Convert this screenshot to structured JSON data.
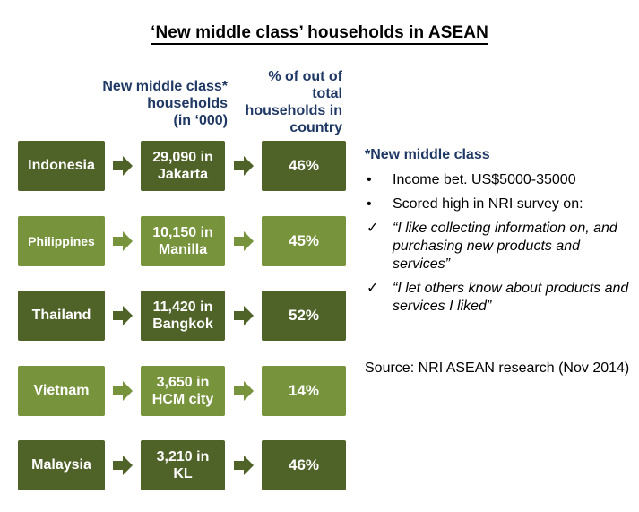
{
  "title": "‘New middle class’ households  in ASEAN",
  "columns": {
    "households": "New middle class*\nhouseholds\n(in ‘000)",
    "percent": "% of out of\ntotal\nhouseholds in\ncountry"
  },
  "rows": [
    {
      "country": "Indonesia",
      "households": "29,090 in\nJakarta",
      "percent": "46%"
    },
    {
      "country": "Philippines",
      "households": "10,150 in\nManilla",
      "percent": "45%"
    },
    {
      "country": "Thailand",
      "households": "11,420 in\nBangkok",
      "percent": "52%"
    },
    {
      "country": "Vietnam",
      "households": "3,650 in\nHCM city",
      "percent": "14%"
    },
    {
      "country": "Malaysia",
      "households": "3,210 in\nKL",
      "percent": "46%"
    }
  ],
  "notes": {
    "heading": "*New middle class",
    "bullet_mark": "•",
    "check_mark": "✓",
    "items": [
      "Income bet. US$5000-35000",
      "Scored high in NRI survey on:",
      "“I like collecting information on, and purchasing new products and services”",
      "“I let others know about products and services I liked”"
    ],
    "source": "Source: NRI ASEAN research (Nov 2014)"
  },
  "colors": {
    "dark_green": "#4f6228",
    "light_green": "#77933c",
    "header_navy": "#1f3864"
  }
}
